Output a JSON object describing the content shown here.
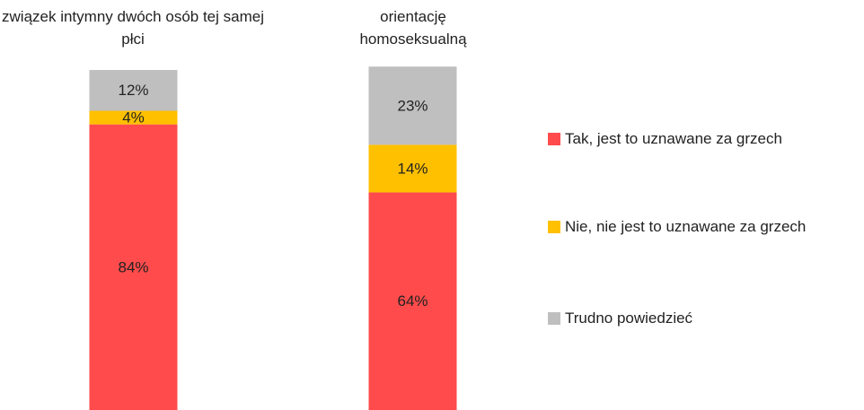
{
  "chart_data": {
    "type": "stacked_bar",
    "categories": [
      "związek intymny dwóch osób tej samej płci",
      "orientację homoseksualną"
    ],
    "series": [
      {
        "name": "Tak, jest to uznawane za grzech",
        "color": "#ff4b4b",
        "values": [
          84,
          64
        ],
        "value_labels": [
          "84%",
          "64%"
        ]
      },
      {
        "name": "Nie, nie jest to uznawane za grzech",
        "color": "#ffc000",
        "values": [
          4,
          14
        ],
        "value_labels": [
          "4%",
          "14%"
        ]
      },
      {
        "name": "Trudno powiedzieć",
        "color": "#bfbfbf",
        "values": [
          12,
          23
        ],
        "value_labels": [
          "12%",
          "23%"
        ]
      }
    ],
    "ylim": [
      0,
      100
    ],
    "legend": "right"
  }
}
